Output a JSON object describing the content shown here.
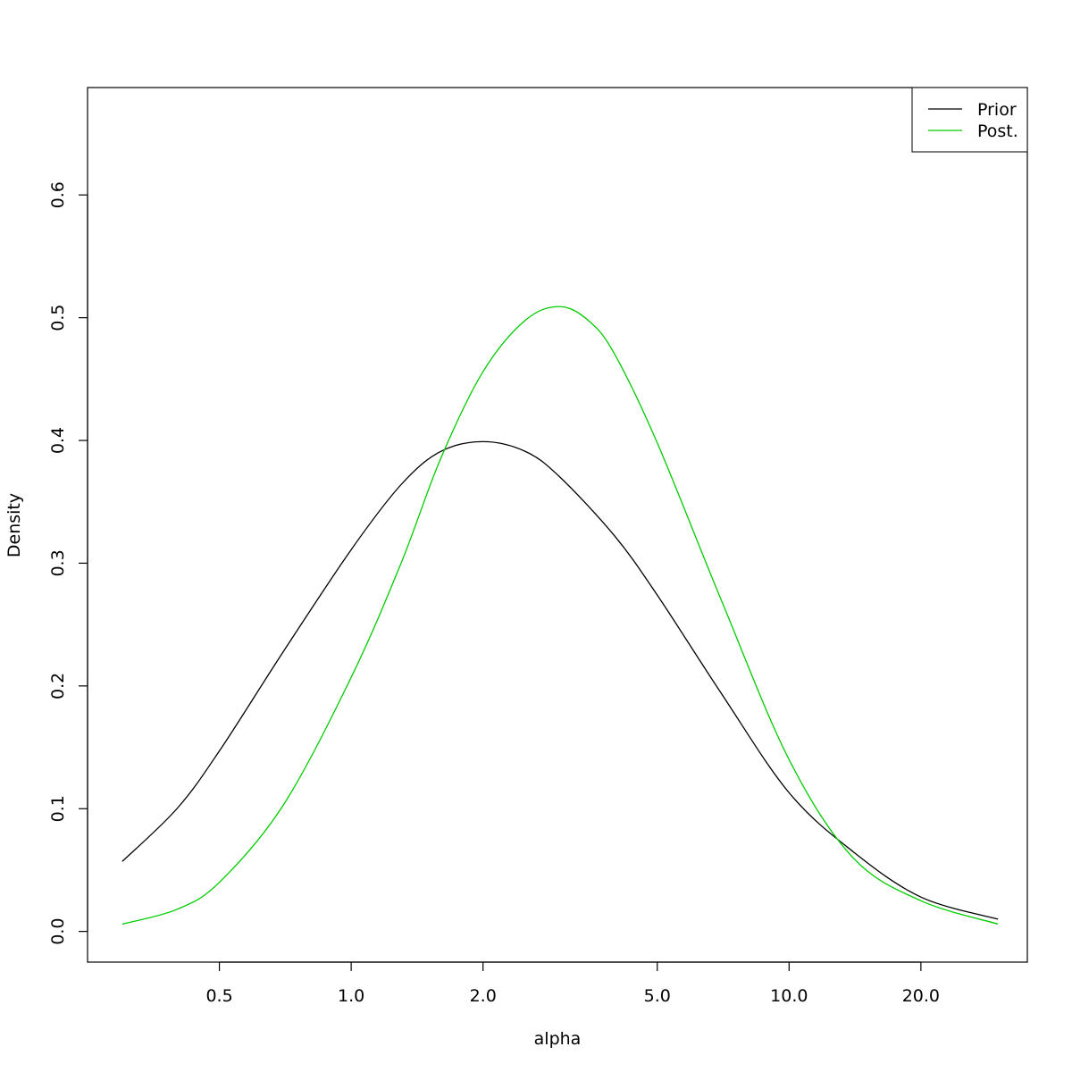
{
  "chart_data": {
    "type": "line",
    "title": "",
    "xlabel": "alpha",
    "ylabel": "Density",
    "x_scale": "log",
    "xlim": [
      0.25,
      35
    ],
    "ylim": [
      -0.025,
      0.6875
    ],
    "x_ticks": [
      0.5,
      1.0,
      2.0,
      5.0,
      10.0,
      20.0
    ],
    "x_tick_labels": [
      "0.5",
      "1.0",
      "2.0",
      "5.0",
      "10.0",
      "20.0"
    ],
    "y_ticks": [
      0.0,
      0.1,
      0.2,
      0.3,
      0.4,
      0.5,
      0.6
    ],
    "y_tick_labels": [
      "0.0",
      "0.1",
      "0.2",
      "0.3",
      "0.4",
      "0.5",
      "0.6"
    ],
    "grid": false,
    "legend": "top-right",
    "series": [
      {
        "name": "Prior",
        "color": "#000000",
        "x": [
          0.3,
          0.4,
          0.5,
          0.7,
          1.0,
          1.3,
          1.6,
          2.0,
          2.5,
          3.0,
          4.0,
          5.0,
          7.0,
          10.0,
          14.0,
          20.0,
          30.0
        ],
        "y": [
          0.057,
          0.1,
          0.147,
          0.228,
          0.311,
          0.364,
          0.391,
          0.399,
          0.391,
          0.37,
          0.322,
          0.274,
          0.194,
          0.113,
          0.065,
          0.028,
          0.01
        ]
      },
      {
        "name": "Post.",
        "color": "#00cc00",
        "x": [
          0.3,
          0.4,
          0.5,
          0.7,
          1.0,
          1.3,
          1.6,
          2.0,
          2.5,
          3.0,
          3.5,
          4.0,
          5.0,
          7.0,
          10.0,
          14.0,
          20.0,
          30.0
        ],
        "y": [
          0.006,
          0.018,
          0.04,
          0.103,
          0.207,
          0.3,
          0.385,
          0.456,
          0.498,
          0.509,
          0.497,
          0.47,
          0.398,
          0.27,
          0.14,
          0.06,
          0.025,
          0.006
        ]
      }
    ]
  }
}
